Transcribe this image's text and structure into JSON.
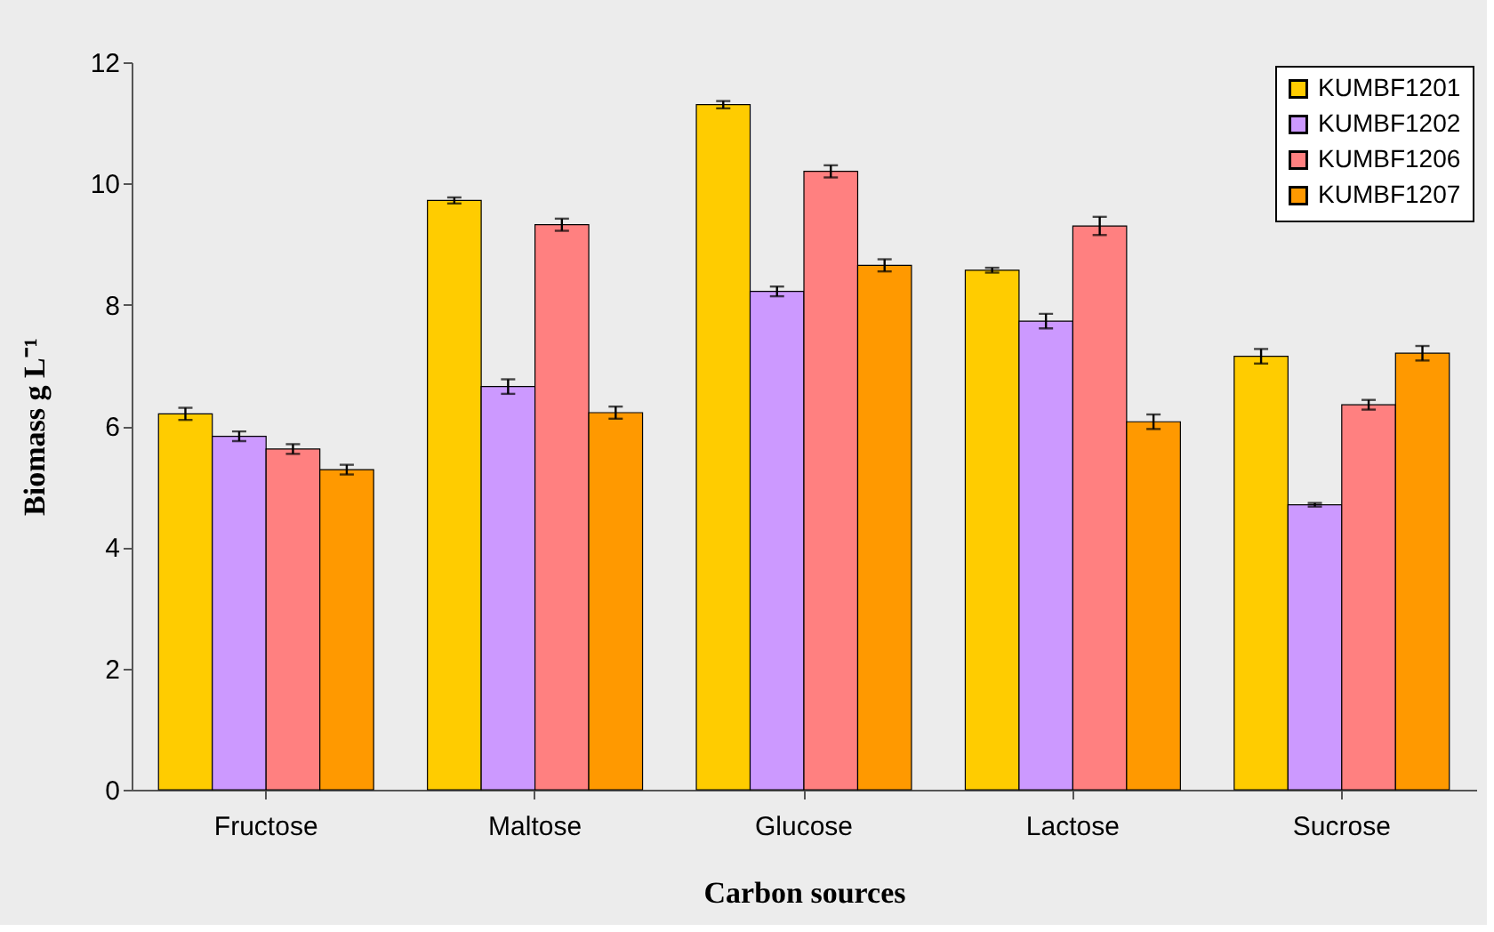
{
  "chart_data": {
    "type": "bar",
    "xlabel": "Carbon sources",
    "ylabel": "Biomass g L⁻¹",
    "categories": [
      "Fructose",
      "Maltose",
      "Glucose",
      "Lactose",
      "Sucrose"
    ],
    "series": [
      {
        "name": "KUMBF1201",
        "color": "#ffcc00",
        "values": [
          6.2,
          9.72,
          11.3,
          8.57,
          7.15
        ],
        "errors": [
          0.1,
          0.05,
          0.06,
          0.04,
          0.12
        ]
      },
      {
        "name": "KUMBF1202",
        "color": "#cc99ff",
        "values": [
          5.83,
          6.65,
          8.22,
          7.73,
          4.7
        ],
        "errors": [
          0.08,
          0.12,
          0.08,
          0.12,
          0.03
        ]
      },
      {
        "name": "KUMBF1206",
        "color": "#ff8080",
        "values": [
          5.62,
          9.32,
          10.2,
          9.3,
          6.35
        ],
        "errors": [
          0.08,
          0.1,
          0.1,
          0.15,
          0.08
        ]
      },
      {
        "name": "KUMBF1207",
        "color": "#ff9900",
        "values": [
          5.28,
          6.22,
          8.65,
          6.07,
          7.2
        ],
        "errors": [
          0.08,
          0.1,
          0.1,
          0.12,
          0.12
        ]
      }
    ],
    "ylim": [
      0,
      12
    ],
    "yticks": [
      0,
      2,
      4,
      6,
      8,
      10,
      12
    ],
    "grid": false,
    "legend": "top right"
  }
}
